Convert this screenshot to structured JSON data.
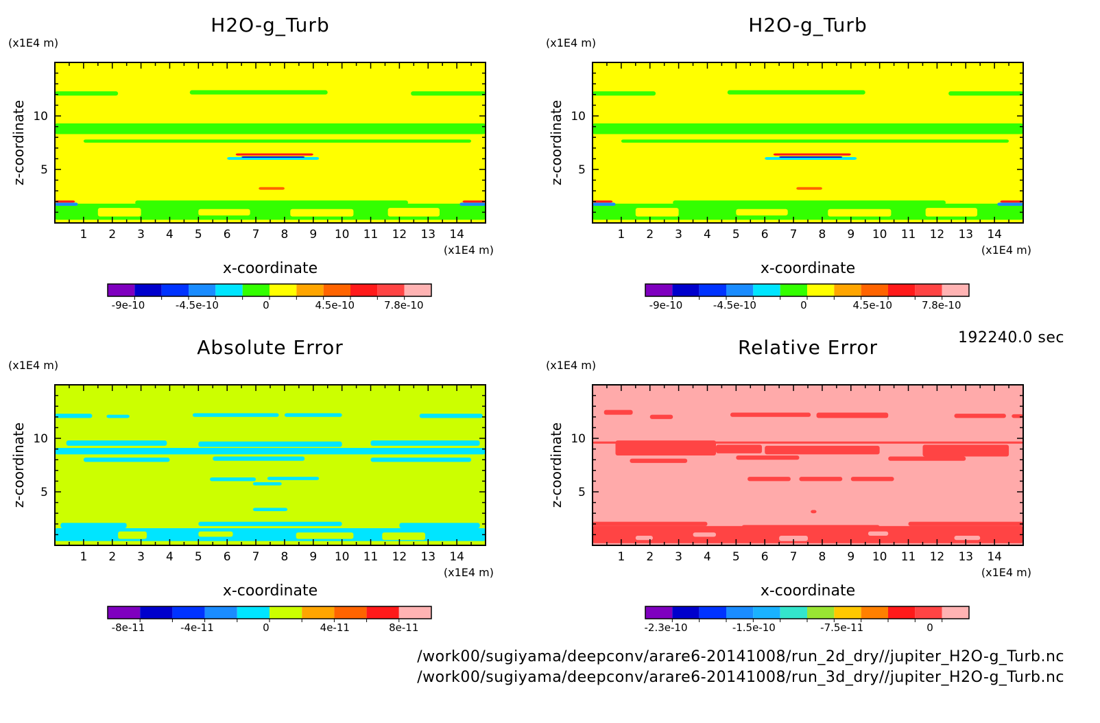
{
  "time_label": "192240.0 sec",
  "footer": [
    "/work00/sugiyama/deepconv/arare6-20141008/run_2d_dry//jupiter_H2O-g_Turb.nc",
    "/work00/sugiyama/deepconv/arare6-20141008/run_3d_dry//jupiter_H2O-g_Turb.nc"
  ],
  "chart_data": [
    {
      "type": "heatmap",
      "title": "H2O-g_Turb",
      "xlabel": "x-coordinate",
      "ylabel": "z-coordinate",
      "x_unit": "(x1E4 m)",
      "y_unit": "(x1E4 m)",
      "xlim": [
        0,
        15
      ],
      "ylim": [
        0,
        15
      ],
      "xticks": [
        "1",
        "2",
        "3",
        "4",
        "5",
        "6",
        "7",
        "8",
        "9",
        "10",
        "11",
        "12",
        "13",
        "14"
      ],
      "yticks": [
        "5",
        "10"
      ],
      "background_color": "#ffff00",
      "colorbar": {
        "colors": [
          "#7f00bf",
          "#0000cc",
          "#0033ff",
          "#1a8cff",
          "#00e5ff",
          "#33ff00",
          "#ffff00",
          "#ffa500",
          "#ff6400",
          "#ff1a1a",
          "#ff4444",
          "#ffb3b3"
        ],
        "labels": [
          "-9e-10",
          "-4.5e-10",
          "0",
          "4.5e-10",
          "7.8e-10"
        ]
      }
    },
    {
      "type": "heatmap",
      "title": "H2O-g_Turb",
      "xlabel": "x-coordinate",
      "ylabel": "z-coordinate",
      "x_unit": "(x1E4 m)",
      "y_unit": "(x1E4 m)",
      "xlim": [
        0,
        15
      ],
      "ylim": [
        0,
        15
      ],
      "xticks": [
        "1",
        "2",
        "3",
        "4",
        "5",
        "6",
        "7",
        "8",
        "9",
        "10",
        "11",
        "12",
        "13",
        "14"
      ],
      "yticks": [
        "5",
        "10"
      ],
      "background_color": "#ffff00",
      "colorbar": {
        "colors": [
          "#7f00bf",
          "#0000cc",
          "#0033ff",
          "#1a8cff",
          "#00e5ff",
          "#33ff00",
          "#ffff00",
          "#ffa500",
          "#ff6400",
          "#ff1a1a",
          "#ff4444",
          "#ffb3b3"
        ],
        "labels": [
          "-9e-10",
          "-4.5e-10",
          "0",
          "4.5e-10",
          "7.8e-10"
        ]
      }
    },
    {
      "type": "heatmap",
      "title": "Absolute Error",
      "xlabel": "x-coordinate",
      "ylabel": "z-coordinate",
      "x_unit": "(x1E4 m)",
      "y_unit": "(x1E4 m)",
      "xlim": [
        0,
        15
      ],
      "ylim": [
        0,
        15
      ],
      "xticks": [
        "1",
        "2",
        "3",
        "4",
        "5",
        "6",
        "7",
        "8",
        "9",
        "10",
        "11",
        "12",
        "13",
        "14"
      ],
      "yticks": [
        "5",
        "10"
      ],
      "background_color": "#ccff00",
      "colorbar": {
        "colors": [
          "#7f00bf",
          "#0000cc",
          "#0033ff",
          "#1a8cff",
          "#00e5ff",
          "#ccff00",
          "#ffa500",
          "#ff6400",
          "#ff1a1a",
          "#ffb3b3"
        ],
        "labels": [
          "-8e-11",
          "-4e-11",
          "0",
          "4e-11",
          "8e-11"
        ]
      }
    },
    {
      "type": "heatmap",
      "title": "Relative Error",
      "xlabel": "x-coordinate",
      "ylabel": "z-coordinate",
      "x_unit": "(x1E4 m)",
      "y_unit": "(x1E4 m)",
      "xlim": [
        0,
        15
      ],
      "ylim": [
        0,
        15
      ],
      "xticks": [
        "1",
        "2",
        "3",
        "4",
        "5",
        "6",
        "7",
        "8",
        "9",
        "10",
        "11",
        "12",
        "13",
        "14"
      ],
      "yticks": [
        "5",
        "10"
      ],
      "background_color": "#ffaaaa",
      "colorbar": {
        "colors": [
          "#7f00bf",
          "#0000cc",
          "#0033ff",
          "#1a8cff",
          "#1ab2ff",
          "#33e5cc",
          "#99e533",
          "#ffc800",
          "#ff8000",
          "#ff1a1a",
          "#ff4444",
          "#ffb3b3"
        ],
        "labels": [
          "-2.3e-10",
          "-1.5e-10",
          "-7.5e-11",
          "0"
        ]
      }
    }
  ]
}
